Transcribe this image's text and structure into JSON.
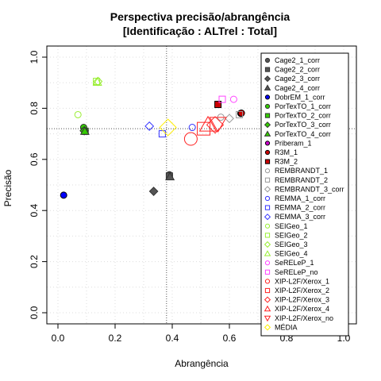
{
  "chart_data": {
    "type": "scatter",
    "title": "Perspectiva precisão/abrangência",
    "subtitle": "[Identificação : ALTrel : Total]",
    "xlabel": "Abrangência",
    "ylabel": "Precisão",
    "xlim": [
      0,
      1
    ],
    "ylim": [
      0,
      1
    ],
    "xticks": [
      "0.0",
      "0.2",
      "0.4",
      "0.6",
      "0.8",
      "1.0"
    ],
    "yticks": [
      "0.0",
      "0.2",
      "0.4",
      "0.6",
      "0.8",
      "1.0"
    ],
    "grid": true,
    "legend_position": "top-right",
    "reference_lines": {
      "x": 0.38,
      "y": 0.72
    },
    "series": [
      {
        "name": "Cage2_1_corr",
        "shape": "circle",
        "filled": true,
        "color": "#555555",
        "points": [
          {
            "x": 0.39,
            "y": 0.54
          }
        ]
      },
      {
        "name": "Cage2_2_corr",
        "shape": "square",
        "filled": true,
        "color": "#555555",
        "points": [
          {
            "x": 0.39,
            "y": 0.535
          }
        ]
      },
      {
        "name": "Cage2_3_corr",
        "shape": "diamond",
        "filled": true,
        "color": "#555555",
        "points": [
          {
            "x": 0.335,
            "y": 0.475
          }
        ]
      },
      {
        "name": "Cage2_4_corr",
        "shape": "triangle",
        "filled": true,
        "color": "#555555",
        "points": [
          {
            "x": 0.392,
            "y": 0.532
          }
        ]
      },
      {
        "name": "DobrEM_1_corr",
        "shape": "circle",
        "filled": true,
        "color": "#0000ff",
        "points": [
          {
            "x": 0.02,
            "y": 0.46
          }
        ]
      },
      {
        "name": "PorTexTO_1_corr",
        "shape": "circle",
        "filled": true,
        "color": "#33cc00",
        "points": [
          {
            "x": 0.09,
            "y": 0.725
          }
        ]
      },
      {
        "name": "PorTexTO_2_corr",
        "shape": "square",
        "filled": true,
        "color": "#33cc00",
        "points": [
          {
            "x": 0.095,
            "y": 0.71
          }
        ]
      },
      {
        "name": "PorTexTO_3_corr",
        "shape": "diamond",
        "filled": true,
        "color": "#33cc00",
        "points": [
          {
            "x": 0.092,
            "y": 0.712
          }
        ]
      },
      {
        "name": "PorTexTO_4_corr",
        "shape": "triangle",
        "filled": true,
        "color": "#33cc00",
        "points": [
          {
            "x": 0.094,
            "y": 0.71
          }
        ]
      },
      {
        "name": "Priberam_1",
        "shape": "circle",
        "filled": true,
        "color": "#cc00cc",
        "points": [
          {
            "x": 0.64,
            "y": 0.78
          }
        ]
      },
      {
        "name": "R3M_1",
        "shape": "circle",
        "filled": true,
        "color": "#cc0000",
        "points": [
          {
            "x": 0.642,
            "y": 0.781
          }
        ]
      },
      {
        "name": "R3M_2",
        "shape": "square",
        "filled": true,
        "color": "#cc0000",
        "points": [
          {
            "x": 0.56,
            "y": 0.815
          }
        ]
      },
      {
        "name": "REMBRANDT_1",
        "shape": "circle",
        "filled": false,
        "color": "#999999",
        "points": [
          {
            "x": 0.57,
            "y": 0.765
          }
        ]
      },
      {
        "name": "REMBRANDT_2",
        "shape": "square",
        "filled": false,
        "color": "#999999",
        "points": [
          {
            "x": 0.635,
            "y": 0.775
          }
        ]
      },
      {
        "name": "REMBRANDT_3_corr",
        "shape": "diamond",
        "filled": false,
        "color": "#999999",
        "points": [
          {
            "x": 0.6,
            "y": 0.76
          }
        ]
      },
      {
        "name": "REMMA_1_corr",
        "shape": "circle",
        "filled": false,
        "color": "#3333ff",
        "points": [
          {
            "x": 0.47,
            "y": 0.725
          }
        ]
      },
      {
        "name": "REMMA_2_corr",
        "shape": "square",
        "filled": false,
        "color": "#3333ff",
        "points": [
          {
            "x": 0.365,
            "y": 0.7
          }
        ]
      },
      {
        "name": "REMMA_3_corr",
        "shape": "diamond",
        "filled": false,
        "color": "#3333ff",
        "points": [
          {
            "x": 0.32,
            "y": 0.73
          }
        ]
      },
      {
        "name": "SEIGeo_1",
        "shape": "circle",
        "filled": false,
        "color": "#99ee33",
        "points": [
          {
            "x": 0.07,
            "y": 0.775
          }
        ]
      },
      {
        "name": "SEIGeo_2",
        "shape": "square",
        "filled": false,
        "color": "#99ee33",
        "points": [
          {
            "x": 0.135,
            "y": 0.905
          }
        ]
      },
      {
        "name": "SEIGeo_3",
        "shape": "diamond",
        "filled": false,
        "color": "#99ee33",
        "points": [
          {
            "x": 0.14,
            "y": 0.905
          }
        ]
      },
      {
        "name": "SEIGeo_4",
        "shape": "triangle",
        "filled": false,
        "color": "#99ee33",
        "points": [
          {
            "x": 0.138,
            "y": 0.902
          }
        ]
      },
      {
        "name": "SeRELeP_1",
        "shape": "circle",
        "filled": false,
        "color": "#ff44ff",
        "points": [
          {
            "x": 0.615,
            "y": 0.835
          }
        ]
      },
      {
        "name": "SeRELeP_no",
        "shape": "square",
        "filled": false,
        "color": "#ff44ff",
        "points": [
          {
            "x": 0.575,
            "y": 0.835
          }
        ]
      },
      {
        "name": "XIP-L2F/Xerox_1",
        "shape": "circle",
        "filled": false,
        "color": "#ff2222",
        "points": [
          {
            "x": 0.465,
            "y": 0.68
          }
        ]
      },
      {
        "name": "XIP-L2F/Xerox_2",
        "shape": "square",
        "filled": false,
        "color": "#ff2222",
        "points": [
          {
            "x": 0.51,
            "y": 0.72
          }
        ]
      },
      {
        "name": "XIP-L2F/Xerox_3",
        "shape": "diamond",
        "filled": false,
        "color": "#ff2222",
        "points": [
          {
            "x": 0.55,
            "y": 0.735
          }
        ]
      },
      {
        "name": "XIP-L2F/Xerox_4",
        "shape": "triangle",
        "filled": false,
        "color": "#ff2222",
        "points": [
          {
            "x": 0.525,
            "y": 0.735
          }
        ]
      },
      {
        "name": "XIP-L2F/Xerox_no",
        "shape": "triangle-down",
        "filled": false,
        "color": "#ff2222",
        "points": [
          {
            "x": 0.56,
            "y": 0.74
          }
        ]
      },
      {
        "name": "MÉDIA",
        "shape": "diamond",
        "filled": false,
        "color": "#ffee00",
        "points": [
          {
            "x": 0.385,
            "y": 0.725
          }
        ]
      }
    ]
  }
}
